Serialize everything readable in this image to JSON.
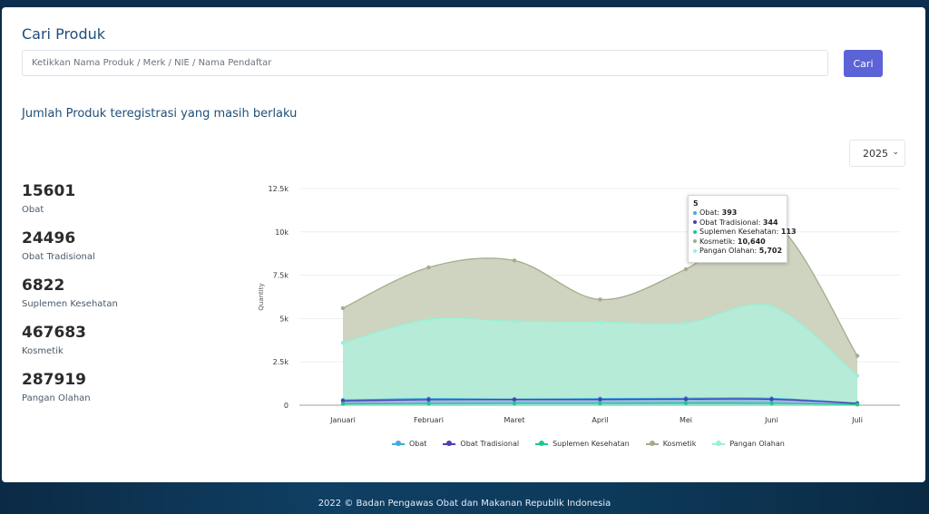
{
  "header": {
    "title": "Cari Produk"
  },
  "search": {
    "placeholder": "Ketikkan Nama Produk / Merk / NIE / Nama Pendaftar",
    "button_label": "Cari"
  },
  "section": {
    "title": "Jumlah Produk teregistrasi yang masih berlaku"
  },
  "year_select": {
    "value": "2025"
  },
  "stats": [
    {
      "value": "15601",
      "label": "Obat"
    },
    {
      "value": "24496",
      "label": "Obat Tradisional"
    },
    {
      "value": "6822",
      "label": "Suplemen Kesehatan"
    },
    {
      "value": "467683",
      "label": "Kosmetik"
    },
    {
      "value": "287919",
      "label": "Pangan Olahan"
    }
  ],
  "tooltip": {
    "title": "5",
    "rows": [
      {
        "name": "Obat",
        "value": "393",
        "color": "#3fa9e0"
      },
      {
        "name": "Obat Tradisional",
        "value": "344",
        "color": "#4b3fb5"
      },
      {
        "name": "Suplemen Kesehatan",
        "value": "113",
        "color": "#1cc98a"
      },
      {
        "name": "Kosmetik",
        "value": "10,640",
        "color": "#a3ad8c"
      },
      {
        "name": "Pangan Olahan",
        "value": "5,702",
        "color": "#98f0d8"
      }
    ]
  },
  "chart_data": {
    "type": "area",
    "categories": [
      "Januari",
      "Februari",
      "Maret",
      "April",
      "Mei",
      "Juni",
      "Juli"
    ],
    "ylabel": "Quantity",
    "ylim": [
      0,
      12500
    ],
    "yticks": [
      "0",
      "2.5k",
      "5k",
      "7.5k",
      "10k",
      "12.5k"
    ],
    "grid": true,
    "legend_position": "bottom",
    "series": [
      {
        "name": "Kosmetik",
        "color": "#a3ad8c",
        "fill": "#c5cdb4",
        "values": [
          5600,
          7950,
          8350,
          6100,
          7850,
          10640,
          2850
        ]
      },
      {
        "name": "Pangan Olahan",
        "color": "#98f0d8",
        "fill": "#b1eedb",
        "values": [
          3600,
          4950,
          4850,
          4800,
          4750,
          5702,
          1700
        ]
      },
      {
        "name": "Obat",
        "color": "#3fa9e0",
        "fill": "#9ad3e8",
        "values": [
          300,
          380,
          350,
          380,
          400,
          393,
          120
        ]
      },
      {
        "name": "Obat Tradisional",
        "color": "#4b3fb5",
        "fill": "#9ab0e0",
        "values": [
          250,
          320,
          330,
          330,
          350,
          344,
          100
        ]
      },
      {
        "name": "Suplemen Kesehatan",
        "color": "#1cc98a",
        "fill": "#8fe8c8",
        "values": [
          80,
          100,
          110,
          110,
          120,
          113,
          40
        ]
      }
    ]
  },
  "footer": {
    "text": "2022 ©  Badan Pengawas Obat dan Makanan Republik Indonesia"
  }
}
